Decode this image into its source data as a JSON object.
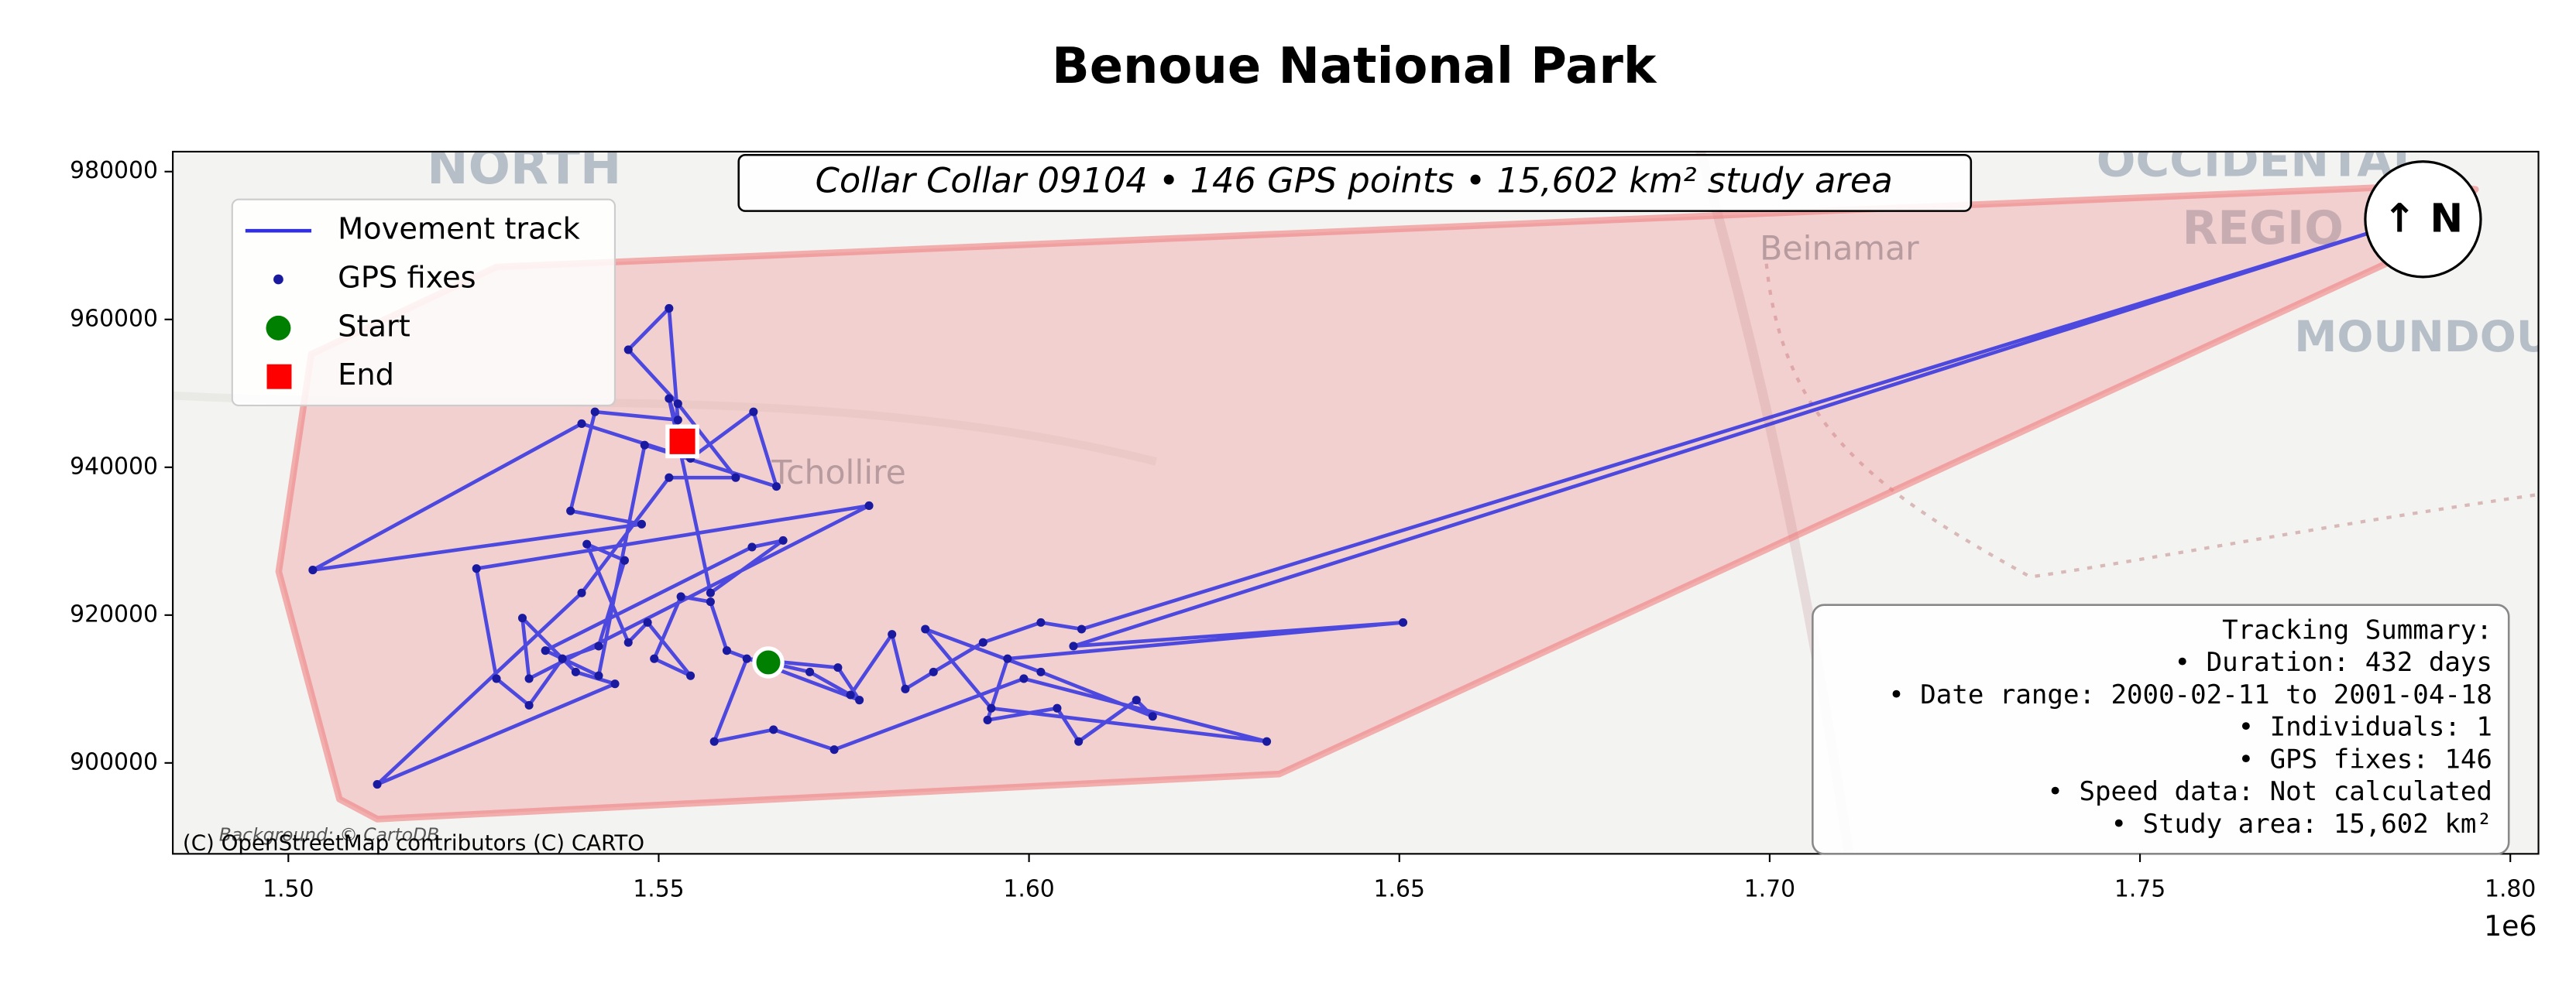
{
  "chart_data": {
    "type": "track",
    "title": "Benoue National Park",
    "subtitle": "Collar Collar 09104 • 146 GPS points • 15,602 km² study area",
    "north_label": "↑ N",
    "x_offset_label": "1e6",
    "attribution": "(C) OpenStreetMap contributors (C) CARTO",
    "background_credit": "Background: © CartoDB",
    "basemap_labels": [
      "NORTH",
      "Tchollire",
      "Beinamar",
      "OCCIDENTAL",
      "REGIO",
      "MOUNDOU"
    ],
    "summary": [
      "Tracking Summary:",
      "• Duration: 432 days",
      "• Date range: 2000-02-11 to 2001-04-18",
      "• Individuals: 1",
      "• GPS fixes: 146",
      "• Speed data: Not calculated",
      "• Study area: 15,602 km²"
    ],
    "xlim": [
      1484400,
      1803800
    ],
    "ylim": [
      887700,
      982700
    ],
    "xticks": [
      {
        "value": 1500000,
        "label": "1.50"
      },
      {
        "value": 1550000,
        "label": "1.55"
      },
      {
        "value": 1600000,
        "label": "1.60"
      },
      {
        "value": 1650000,
        "label": "1.65"
      },
      {
        "value": 1700000,
        "label": "1.70"
      },
      {
        "value": 1750000,
        "label": "1.75"
      },
      {
        "value": 1800000,
        "label": "1.80"
      }
    ],
    "yticks": [
      900000,
      920000,
      940000,
      960000,
      980000
    ],
    "study_area": {
      "color": "#f08080",
      "x": [
        1512000,
        1506900,
        1498700,
        1503100,
        1528100,
        1790900,
        1795300,
        1784200,
        1633800
      ],
      "values": [
        892400,
        895100,
        925900,
        955300,
        967100,
        978200,
        977600,
        968000,
        898500
      ]
    },
    "series": [
      {
        "name": "Movement track",
        "color": "#3030e0",
        "style": "line",
        "x": [
          1564800,
          1570400,
          1575900,
          1581500,
          1583300,
          1587100,
          1593800,
          1601600,
          1607100,
          1781900,
          1606000,
          1650500,
          1597100,
          1594400,
          1603800,
          1606700,
          1614500,
          1616700,
          1601600,
          1586000,
          1594900,
          1632100,
          1599300,
          1573700,
          1565500,
          1557500,
          1561900,
          1574200,
          1577100,
          1559200,
          1557000,
          1553000,
          1549400,
          1554300,
          1548500,
          1545900,
          1540300,
          1545400,
          1541900,
          1537000,
          1532500,
          1528100,
          1525400,
          1578400,
          1532500,
          1531600,
          1538800,
          1544100,
          1512000,
          1539600,
          1551400,
          1560400,
          1552600,
          1545900,
          1551400,
          1552600,
          1541400,
          1538100,
          1547700,
          1503300,
          1539600,
          1554300,
          1562800,
          1565900,
          1548100,
          1541900,
          1534700,
          1562600,
          1566800,
          1557000,
          1551400,
          1553200
        ],
        "values": [
          913600,
          912300,
          909200,
          917400,
          910000,
          912300,
          916300,
          919000,
          918100,
          972000,
          915800,
          919000,
          914100,
          905800,
          907400,
          902900,
          908500,
          906300,
          912300,
          918100,
          907400,
          902900,
          911400,
          901800,
          904500,
          902900,
          914100,
          912900,
          908500,
          915200,
          921800,
          922500,
          914100,
          911800,
          919000,
          916300,
          929600,
          927400,
          915800,
          914100,
          907800,
          911400,
          926300,
          934800,
          911400,
          919600,
          912300,
          910700,
          897100,
          923000,
          938600,
          938600,
          948600,
          955900,
          961500,
          946400,
          947500,
          934100,
          932300,
          926100,
          945900,
          941200,
          947500,
          937400,
          943000,
          911800,
          915200,
          929200,
          930100,
          923000,
          949300,
          943500
        ]
      },
      {
        "name": "GPS fixes",
        "color": "#1a1aa0",
        "style": "points"
      },
      {
        "name": "Start",
        "color": "#008000",
        "style": "start",
        "x": [
          1564800
        ],
        "values": [
          913600
        ]
      },
      {
        "name": "End",
        "color": "#ff0000",
        "style": "end",
        "x": [
          1553200
        ],
        "values": [
          943500
        ]
      }
    ]
  }
}
